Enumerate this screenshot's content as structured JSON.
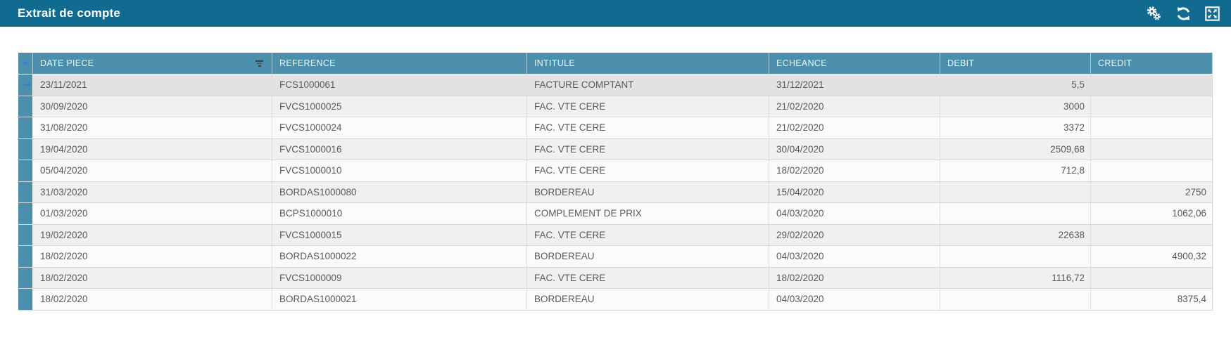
{
  "titlebar": {
    "title": "Extrait de compte",
    "toolbar_icons": [
      "gears-icon",
      "refresh-icon",
      "expand-icon"
    ]
  },
  "colors": {
    "titlebar_bg": "#116b90",
    "grid_header_bg": "#4b8fac",
    "selected_row_bg": "#e2e2e2",
    "alt_row_bg": "#f0f0f0",
    "row_bg": "#fbfbfb",
    "current_row_arrow": "#2e78d8"
  },
  "table": {
    "selected_row_index": 0,
    "columns": [
      {
        "key": "date",
        "label": "DATE PIECE",
        "filter": true,
        "align": "left"
      },
      {
        "key": "reference",
        "label": "REFERENCE",
        "filter": false,
        "align": "left"
      },
      {
        "key": "intitule",
        "label": "INTITULE",
        "filter": false,
        "align": "left"
      },
      {
        "key": "echeance",
        "label": "ECHEANCE",
        "filter": false,
        "align": "left"
      },
      {
        "key": "debit",
        "label": "DEBIT",
        "filter": false,
        "align": "right"
      },
      {
        "key": "credit",
        "label": "CREDIT",
        "filter": false,
        "align": "right"
      }
    ],
    "rows": [
      {
        "date": "23/11/2021",
        "reference": "FCS1000061",
        "intitule": "FACTURE COMPTANT",
        "echeance": "31/12/2021",
        "debit": "5,5",
        "credit": ""
      },
      {
        "date": "30/09/2020",
        "reference": "FVCS1000025",
        "intitule": "FAC. VTE CERE",
        "echeance": "21/02/2020",
        "debit": "3000",
        "credit": ""
      },
      {
        "date": "31/08/2020",
        "reference": "FVCS1000024",
        "intitule": "FAC. VTE CERE",
        "echeance": "21/02/2020",
        "debit": "3372",
        "credit": ""
      },
      {
        "date": "19/04/2020",
        "reference": "FVCS1000016",
        "intitule": "FAC. VTE CERE",
        "echeance": "30/04/2020",
        "debit": "2509,68",
        "credit": ""
      },
      {
        "date": "05/04/2020",
        "reference": "FVCS1000010",
        "intitule": "FAC. VTE CERE",
        "echeance": "18/02/2020",
        "debit": "712,8",
        "credit": ""
      },
      {
        "date": "31/03/2020",
        "reference": "BORDAS1000080",
        "intitule": "BORDEREAU",
        "echeance": "15/04/2020",
        "debit": "",
        "credit": "2750"
      },
      {
        "date": "01/03/2020",
        "reference": "BCPS1000010",
        "intitule": "COMPLEMENT DE PRIX",
        "echeance": "04/03/2020",
        "debit": "",
        "credit": "1062,06"
      },
      {
        "date": "19/02/2020",
        "reference": "FVCS1000015",
        "intitule": "FAC. VTE CERE",
        "echeance": "29/02/2020",
        "debit": "22638",
        "credit": ""
      },
      {
        "date": "18/02/2020",
        "reference": "BORDAS1000022",
        "intitule": "BORDEREAU",
        "echeance": "04/03/2020",
        "debit": "",
        "credit": "4900,32"
      },
      {
        "date": "18/02/2020",
        "reference": "FVCS1000009",
        "intitule": "FAC. VTE CERE",
        "echeance": "18/02/2020",
        "debit": "1116,72",
        "credit": ""
      },
      {
        "date": "18/02/2020",
        "reference": "BORDAS1000021",
        "intitule": "BORDEREAU",
        "echeance": "04/03/2020",
        "debit": "",
        "credit": "8375,4"
      }
    ]
  }
}
